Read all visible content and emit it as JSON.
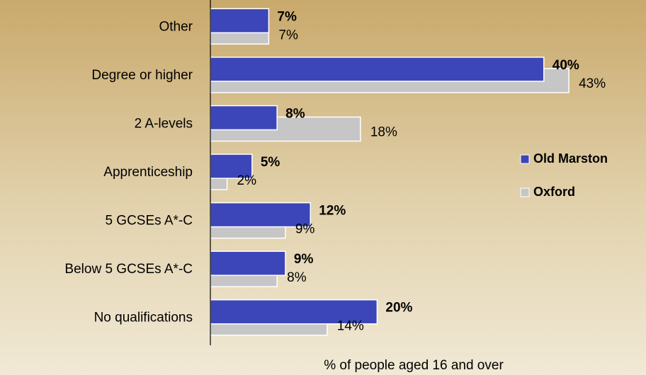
{
  "chart_data": {
    "type": "hbar",
    "categories": [
      "Other",
      "Degree or higher",
      "2 A-levels",
      "Apprenticeship",
      "5 GCSEs A*-C",
      "Below 5 GCSEs A*-C",
      "No qualifications"
    ],
    "series": [
      {
        "name": "Old Marston",
        "color": "#3c46b8",
        "values": [
          7,
          40,
          8,
          5,
          12,
          9,
          20
        ],
        "value_labels": [
          "7%",
          "40%",
          "8%",
          "5%",
          "12%",
          "9%",
          "20%"
        ]
      },
      {
        "name": "Oxford",
        "color": "#c6c6c6",
        "values": [
          7,
          43,
          18,
          2,
          9,
          8,
          14
        ],
        "value_labels": [
          "7%",
          "43%",
          "18%",
          "2%",
          "9%",
          "8%",
          "14%"
        ]
      }
    ],
    "xlabel": "% of people aged 16 and over",
    "xlim": [
      0,
      52
    ],
    "legend": "right"
  }
}
